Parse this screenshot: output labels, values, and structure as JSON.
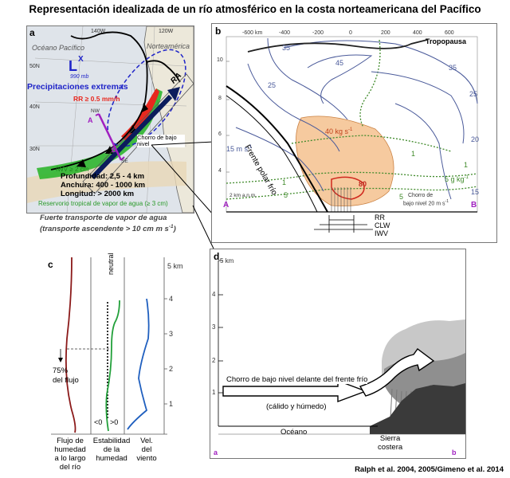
{
  "title": "Representación idealizada de un río atmosférico en la costa norteamericana del Pacífico",
  "credit": "Ralph et al. 2004, 2005/Gimeno et al. 2014",
  "colors": {
    "extreme_precip": "#1f24c8",
    "ar_green": "#2fb52f",
    "rr_red": "#e8281e",
    "moisture_orange": "#f6c89a",
    "contour_blue": "#4a5a9a",
    "contour_green": "#3f8a2a",
    "moisture_flux": "#8b1a1a",
    "stability": "#22a03a",
    "wind": "#1f5fbf"
  },
  "panel_a": {
    "label": "a",
    "ocean": "Océano Pacífico",
    "continent": "Norteamérica",
    "lon_140": "140W",
    "lon_120": "120W",
    "lat_50": "50N",
    "lat_40": "40N",
    "lat_30": "30N",
    "low": "L",
    "low_x": "X",
    "pressure": "990 mb",
    "extreme_precip": "Precipitaciones extremas",
    "rr": "RR ≥ 0.5 mm/h",
    "ar": "RA",
    "nw": "NW",
    "se": "SE",
    "point_a": "A",
    "point_b": "B",
    "lljet": "Chorro de bajo nivel",
    "iwv": "IWV ≥ 2 cm",
    "depth": "Profundidad: 2,5 - 4 km",
    "width": "Anchura: 400 - 1000 km",
    "length": "Longitud: > 2000 km",
    "reservoir": "Reservorio tropical de vapor de agua (≥ 3 cm)",
    "caption_line1": "Fuerte transporte de vapor de agua",
    "caption_line2": "(transporte ascendente > 10 cm m s",
    "caption_sup": "-1",
    "caption_end": ")"
  },
  "panel_b": {
    "label": "b",
    "x_ticks": [
      "-600 km",
      "-400",
      "-200",
      "0",
      "200",
      "400",
      "600"
    ],
    "y_ticks": [
      "10",
      "8",
      "6",
      "4",
      "2 km a.n.m."
    ],
    "tropopause": "Tropopausa",
    "front": "Frente polar frío",
    "wind_35a": "35",
    "wind_25a": "25",
    "wind_45": "45",
    "wind_35b": "35",
    "wind_25b": "25",
    "wind_20": "20",
    "wind_15a": "15 m s",
    "wind_15a_sup": "-1",
    "wind_15b": "15",
    "flux_40": "40 kg s",
    "flux_sup": "-1",
    "flux_80": "80",
    "q_5g": "5 g kg",
    "q_sup": "-1",
    "q_1a": "1",
    "q_1b": "1",
    "q_1c": "1",
    "q_5b": "5",
    "q_5c": "5",
    "lljet": "Chorro de",
    "lljet2": "bajo nivel 20 m s",
    "lljet_sup": "-1",
    "point_a": "A",
    "point_b": "B",
    "rr": "RR",
    "clw": "CLW",
    "iwv": "IWV"
  },
  "panel_c": {
    "label": "c",
    "neutral": "neutral",
    "km_label": "5 km",
    "y_ticks": [
      "4",
      "3",
      "2",
      "1"
    ],
    "pct": "75%",
    "pct_label": "del flujo",
    "lt0": "<0",
    "gt0": ">0",
    "col1": [
      "Flujo de",
      "humedad",
      "a lo largo",
      "del río"
    ],
    "col2": [
      "Estabilidad",
      "de la",
      "humedad"
    ],
    "col3": [
      "Vel.",
      "del",
      "viento"
    ]
  },
  "panel_d": {
    "label": "d",
    "km_label": "5 km",
    "y_ticks": [
      "4",
      "3",
      "2",
      "1"
    ],
    "lljet": "Chorro de bajo nivel delante del frente frío",
    "moist": "(cálido y húmedo)",
    "ocean": "Océano",
    "sierra1": "Sierra",
    "sierra2": "costera",
    "point_a": "a",
    "point_b": "b"
  }
}
